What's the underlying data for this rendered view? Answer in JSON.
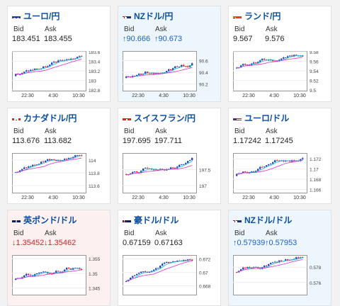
{
  "colors": {
    "candle_up": "#1a49c4",
    "candle_down": "#e02020",
    "ma_short": "#22b8d8",
    "ma_long": "#d030d0",
    "up_text": "#1a5fc8",
    "down_text": "#d42222"
  },
  "cards": [
    {
      "pair": "ユーロ/円",
      "flag": "eu",
      "bid_label": "Bid",
      "ask_label": "Ask",
      "bid": "183.451",
      "ask": "183.455",
      "trend": "none",
      "chart": {
        "y_ticks": [
          "183.6",
          "183.4",
          "183.2",
          "183",
          "182.8"
        ],
        "x_ticks": [
          "22:30",
          "4:30",
          "10:30"
        ],
        "ylim": [
          182.8,
          183.6
        ]
      }
    },
    {
      "pair": "NZドル/円",
      "flag": "nz",
      "bid_label": "Bid",
      "ask_label": "Ask",
      "bid": "↑90.666",
      "ask": "↑90.673",
      "trend": "up",
      "chart": {
        "y_ticks": [
          "90.6",
          "90.4",
          "90.2"
        ],
        "x_ticks": [
          "22:30",
          "4:30",
          "10:30"
        ],
        "ylim": [
          90.1,
          90.75
        ]
      }
    },
    {
      "pair": "ランド/円",
      "flag": "za",
      "bid_label": "Bid",
      "ask_label": "Ask",
      "bid": "9.567",
      "ask": "9.576",
      "trend": "none",
      "chart": {
        "y_ticks": [
          "9.58",
          "9.56",
          "9.54",
          "9.52",
          "9.5"
        ],
        "x_ticks": [
          "22:30",
          "4:30",
          "10:30"
        ],
        "ylim": [
          9.5,
          9.58
        ]
      }
    },
    {
      "pair": "カナダドル/円",
      "flag": "ca",
      "bid_label": "Bid",
      "ask_label": "Ask",
      "bid": "113.676",
      "ask": "113.682",
      "trend": "none",
      "chart": {
        "y_ticks": [
          "114",
          "113.8",
          "113.6"
        ],
        "x_ticks": [
          "22:30",
          "4:30",
          "10:30"
        ],
        "ylim": [
          113.5,
          114.1
        ]
      }
    },
    {
      "pair": "スイスフラン/円",
      "flag": "ch",
      "bid_label": "Bid",
      "ask_label": "Ask",
      "bid": "197.695",
      "ask": "197.711",
      "trend": "none",
      "chart": {
        "y_ticks": [
          "197.5",
          "197"
        ],
        "x_ticks": [
          "22:30",
          "4:30",
          "10:30"
        ],
        "ylim": [
          196.8,
          198
        ]
      }
    },
    {
      "pair": "ユーロ/ドル",
      "flag": "us",
      "bid_label": "Bid",
      "ask_label": "Ask",
      "bid": "1.17242",
      "ask": "1.17245",
      "trend": "none",
      "chart": {
        "y_ticks": [
          "1.172",
          "1.17",
          "1.168",
          "1.166"
        ],
        "x_ticks": [
          "22:30",
          "4:30",
          "10:30"
        ],
        "ylim": [
          1.1655,
          1.173
        ]
      }
    },
    {
      "pair": "英ポンド/ドル",
      "flag": "gb",
      "bid_label": "Bid",
      "ask_label": "Ask",
      "bid": "↓1.35452",
      "ask": "↓1.35462",
      "trend": "down",
      "chart": {
        "y_ticks": [
          "1.355",
          "1.35",
          "1.345"
        ],
        "x_ticks": [],
        "ylim": [
          1.343,
          1.356
        ]
      }
    },
    {
      "pair": "豪ドル/ドル",
      "flag": "au",
      "bid_label": "Bid",
      "ask_label": "Ask",
      "bid": "0.67159",
      "ask": "0.67163",
      "trend": "none",
      "chart": {
        "y_ticks": [
          "0.672",
          "0.67",
          "0.668"
        ],
        "x_ticks": [],
        "ylim": [
          0.6668,
          0.6725
        ]
      }
    },
    {
      "pair": "NZドル/ドル",
      "flag": "nz",
      "bid_label": "Bid",
      "ask_label": "Ask",
      "bid": "↑0.57939",
      "ask": "↑0.57953",
      "trend": "up",
      "chart": {
        "y_ticks": [
          "0.578",
          "0.576"
        ],
        "x_ticks": [],
        "ylim": [
          0.5745,
          0.5795
        ]
      }
    }
  ]
}
